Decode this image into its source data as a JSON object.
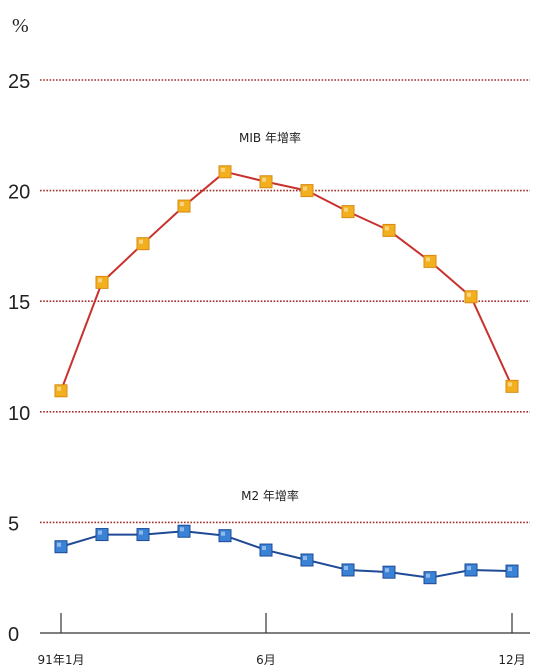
{
  "chart_data": {
    "type": "line",
    "unit_label": "%",
    "y_ticks": [
      "0",
      "5",
      "10",
      "15",
      "20",
      "25"
    ],
    "x_ticks": [
      "91年1月",
      "6月",
      "12月"
    ],
    "ylim": [
      0,
      25
    ],
    "grid": true,
    "series": [
      {
        "name": "MIB 年增率",
        "color": "#c8312d",
        "marker_color": "#f2b01e",
        "values": [
          10.95,
          15.85,
          17.6,
          19.3,
          20.85,
          20.4,
          20.0,
          19.05,
          18.2,
          16.8,
          15.2,
          11.15
        ]
      },
      {
        "name": "M2 年增率",
        "color": "#1f4a96",
        "marker_color": "#3a82d6",
        "values": [
          3.9,
          4.45,
          4.45,
          4.6,
          4.4,
          3.75,
          3.3,
          2.85,
          2.75,
          2.5,
          2.85,
          2.8
        ]
      }
    ]
  }
}
